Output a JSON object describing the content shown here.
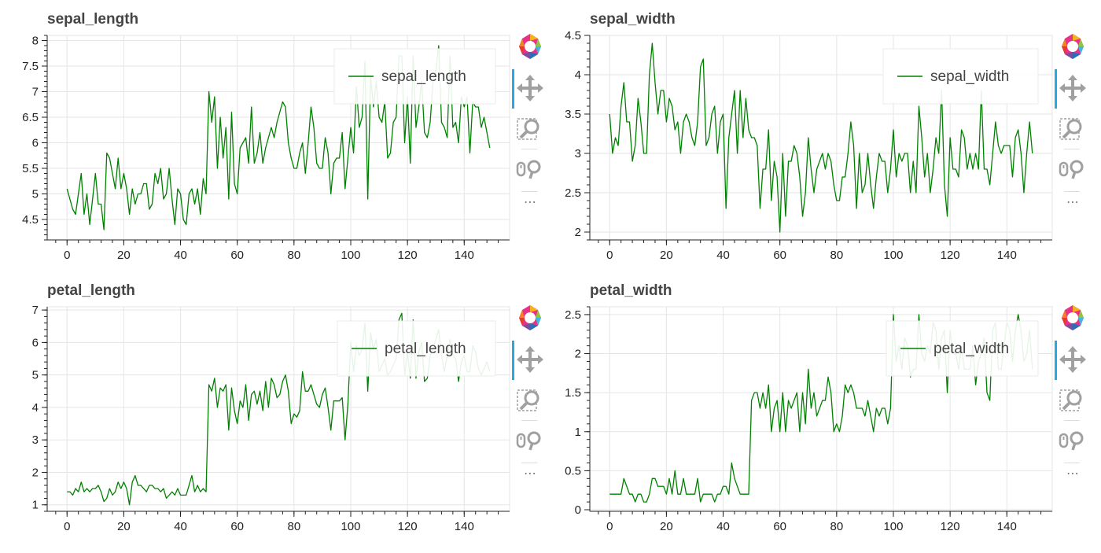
{
  "colors": {
    "line": "#008000",
    "grid": "#e5e5e5",
    "axis": "#222222",
    "accent": "#26aae1",
    "tool": "#a0a0a0"
  },
  "toolbar": {
    "icons": [
      "bokeh-logo-icon",
      "pan-icon",
      "box-zoom-icon",
      "wheel-zoom-icon",
      "more-icon"
    ],
    "more_label": "⋯"
  },
  "chart_data": [
    {
      "type": "line",
      "title": "sepal_length",
      "legend": "top-right",
      "xlim": [
        -7,
        156
      ],
      "ylim": [
        4.1,
        8.1
      ],
      "xticks": [
        "0",
        "20",
        "40",
        "60",
        "80",
        "100",
        "120",
        "140"
      ],
      "yticks": [
        "4.5",
        "5",
        "5.5",
        "6",
        "6.5",
        "7",
        "7.5",
        "8"
      ],
      "series": [
        {
          "name": "sepal_length",
          "values": [
            5.1,
            4.9,
            4.7,
            4.6,
            5.0,
            5.4,
            4.6,
            5.0,
            4.4,
            4.9,
            5.4,
            4.8,
            4.8,
            4.3,
            5.8,
            5.7,
            5.4,
            5.1,
            5.7,
            5.1,
            5.4,
            5.1,
            4.6,
            5.1,
            4.8,
            5.0,
            5.0,
            5.2,
            5.2,
            4.7,
            4.8,
            5.4,
            5.2,
            5.5,
            4.9,
            5.0,
            5.5,
            4.9,
            4.4,
            5.1,
            5.0,
            4.5,
            4.4,
            5.0,
            5.1,
            4.8,
            5.1,
            4.6,
            5.3,
            5.0,
            7.0,
            6.4,
            6.9,
            5.5,
            6.5,
            5.7,
            6.3,
            4.9,
            6.6,
            5.2,
            5.0,
            5.9,
            6.0,
            6.1,
            5.6,
            6.7,
            5.6,
            5.8,
            6.2,
            5.6,
            5.9,
            6.1,
            6.3,
            6.1,
            6.4,
            6.6,
            6.8,
            6.7,
            6.0,
            5.7,
            5.5,
            5.5,
            5.8,
            6.0,
            5.4,
            6.0,
            6.7,
            6.3,
            5.6,
            5.5,
            5.5,
            6.1,
            5.8,
            5.0,
            5.6,
            5.7,
            5.7,
            6.2,
            5.1,
            5.7,
            6.3,
            5.8,
            7.1,
            6.3,
            6.5,
            7.6,
            4.9,
            7.3,
            6.7,
            7.2,
            6.5,
            6.4,
            6.8,
            5.7,
            5.8,
            6.4,
            6.5,
            7.7,
            7.7,
            6.0,
            6.9,
            5.6,
            7.7,
            6.3,
            6.7,
            7.2,
            6.2,
            6.1,
            6.4,
            7.2,
            7.4,
            7.9,
            6.4,
            6.3,
            6.1,
            7.7,
            6.3,
            6.4,
            6.0,
            6.9,
            6.7,
            6.9,
            5.8,
            6.8,
            6.7,
            6.7,
            6.3,
            6.5,
            6.2,
            5.9
          ]
        }
      ]
    },
    {
      "type": "line",
      "title": "sepal_width",
      "legend": "top-right",
      "xlim": [
        -7,
        156
      ],
      "ylim": [
        1.9,
        4.5
      ],
      "xticks": [
        "0",
        "20",
        "40",
        "60",
        "80",
        "100",
        "120",
        "140"
      ],
      "yticks": [
        "2",
        "2.5",
        "3",
        "3.5",
        "4",
        "4.5"
      ],
      "series": [
        {
          "name": "sepal_width",
          "values": [
            3.5,
            3.0,
            3.2,
            3.1,
            3.6,
            3.9,
            3.4,
            3.4,
            2.9,
            3.1,
            3.7,
            3.4,
            3.0,
            3.0,
            4.0,
            4.4,
            3.9,
            3.5,
            3.8,
            3.8,
            3.4,
            3.7,
            3.6,
            3.3,
            3.4,
            3.0,
            3.4,
            3.5,
            3.4,
            3.2,
            3.1,
            3.4,
            4.1,
            4.2,
            3.1,
            3.2,
            3.5,
            3.6,
            3.0,
            3.4,
            3.5,
            2.3,
            3.2,
            3.5,
            3.8,
            3.0,
            3.8,
            3.2,
            3.7,
            3.3,
            3.2,
            3.2,
            3.1,
            2.3,
            2.8,
            2.8,
            3.3,
            2.4,
            2.9,
            2.7,
            2.0,
            3.0,
            2.2,
            2.9,
            2.9,
            3.1,
            3.0,
            2.7,
            2.2,
            2.5,
            3.2,
            2.8,
            2.5,
            2.8,
            2.9,
            3.0,
            2.8,
            3.0,
            2.9,
            2.6,
            2.4,
            2.4,
            2.7,
            2.7,
            3.0,
            3.4,
            3.1,
            2.3,
            3.0,
            2.5,
            2.6,
            3.0,
            2.6,
            2.3,
            2.7,
            3.0,
            2.9,
            2.9,
            2.5,
            2.8,
            3.3,
            2.7,
            3.0,
            2.9,
            3.0,
            3.0,
            2.5,
            2.9,
            2.5,
            3.6,
            3.2,
            2.7,
            3.0,
            2.5,
            2.8,
            3.2,
            3.0,
            3.8,
            2.6,
            2.2,
            3.2,
            2.8,
            2.8,
            2.7,
            3.3,
            3.2,
            2.8,
            3.0,
            2.8,
            3.0,
            2.8,
            3.8,
            2.8,
            2.8,
            2.6,
            3.0,
            3.4,
            3.1,
            3.0,
            3.1,
            3.1,
            3.1,
            2.7,
            3.2,
            3.3,
            3.0,
            2.5,
            3.0,
            3.4,
            3.0
          ]
        }
      ]
    },
    {
      "type": "line",
      "title": "petal_length",
      "legend": "top-right",
      "xlim": [
        -7,
        156
      ],
      "ylim": [
        0.8,
        7.1
      ],
      "xticks": [
        "0",
        "20",
        "40",
        "60",
        "80",
        "100",
        "120",
        "140"
      ],
      "yticks": [
        "1",
        "2",
        "3",
        "4",
        "5",
        "6",
        "7"
      ],
      "series": [
        {
          "name": "petal_length",
          "values": [
            1.4,
            1.4,
            1.3,
            1.5,
            1.4,
            1.7,
            1.4,
            1.5,
            1.4,
            1.5,
            1.5,
            1.6,
            1.4,
            1.1,
            1.2,
            1.5,
            1.3,
            1.4,
            1.7,
            1.5,
            1.7,
            1.5,
            1.0,
            1.7,
            1.9,
            1.6,
            1.6,
            1.5,
            1.4,
            1.6,
            1.6,
            1.5,
            1.5,
            1.4,
            1.5,
            1.2,
            1.3,
            1.4,
            1.3,
            1.5,
            1.3,
            1.3,
            1.3,
            1.6,
            1.9,
            1.4,
            1.6,
            1.4,
            1.5,
            1.4,
            4.7,
            4.5,
            4.9,
            4.0,
            4.6,
            4.5,
            4.7,
            3.3,
            4.6,
            3.9,
            3.5,
            4.2,
            4.0,
            4.7,
            3.6,
            4.4,
            4.5,
            4.1,
            4.5,
            3.9,
            4.8,
            4.0,
            4.9,
            4.7,
            4.3,
            4.4,
            4.8,
            5.0,
            4.5,
            3.5,
            3.8,
            3.7,
            3.9,
            5.1,
            4.5,
            4.5,
            4.7,
            4.4,
            4.1,
            4.0,
            4.4,
            4.6,
            4.0,
            3.3,
            4.2,
            4.2,
            4.2,
            4.3,
            3.0,
            4.1,
            6.0,
            5.1,
            5.9,
            5.6,
            5.8,
            6.6,
            4.5,
            6.3,
            5.8,
            6.1,
            5.1,
            5.3,
            5.5,
            5.0,
            5.1,
            5.3,
            5.5,
            6.7,
            6.9,
            5.0,
            5.7,
            4.9,
            6.7,
            4.9,
            5.7,
            6.0,
            4.8,
            4.9,
            5.6,
            5.8,
            6.1,
            6.4,
            5.6,
            5.1,
            5.6,
            6.1,
            5.6,
            5.5,
            4.8,
            5.4,
            5.6,
            5.1,
            5.1,
            5.9,
            5.7,
            5.2,
            5.0,
            5.2,
            5.4,
            5.1
          ]
        }
      ]
    },
    {
      "type": "line",
      "title": "petal_width",
      "legend": "top-right",
      "xlim": [
        -7,
        156
      ],
      "ylim": [
        -0.02,
        2.6
      ],
      "xticks": [
        "0",
        "20",
        "40",
        "60",
        "80",
        "100",
        "120",
        "140"
      ],
      "yticks": [
        "0",
        "0.5",
        "1",
        "1.5",
        "2",
        "2.5"
      ],
      "series": [
        {
          "name": "petal_width",
          "values": [
            0.2,
            0.2,
            0.2,
            0.2,
            0.2,
            0.4,
            0.3,
            0.2,
            0.2,
            0.1,
            0.2,
            0.2,
            0.1,
            0.1,
            0.2,
            0.4,
            0.4,
            0.3,
            0.3,
            0.3,
            0.2,
            0.4,
            0.2,
            0.5,
            0.2,
            0.2,
            0.4,
            0.2,
            0.2,
            0.2,
            0.2,
            0.4,
            0.1,
            0.2,
            0.2,
            0.2,
            0.2,
            0.1,
            0.2,
            0.2,
            0.3,
            0.3,
            0.2,
            0.6,
            0.4,
            0.3,
            0.2,
            0.2,
            0.2,
            0.2,
            1.4,
            1.5,
            1.5,
            1.3,
            1.5,
            1.3,
            1.6,
            1.0,
            1.3,
            1.4,
            1.0,
            1.5,
            1.0,
            1.4,
            1.3,
            1.4,
            1.5,
            1.0,
            1.5,
            1.1,
            1.8,
            1.3,
            1.5,
            1.2,
            1.3,
            1.4,
            1.4,
            1.7,
            1.5,
            1.0,
            1.1,
            1.0,
            1.2,
            1.6,
            1.5,
            1.6,
            1.5,
            1.3,
            1.3,
            1.3,
            1.2,
            1.4,
            1.2,
            1.0,
            1.3,
            1.2,
            1.3,
            1.3,
            1.1,
            1.3,
            2.5,
            1.9,
            2.1,
            1.8,
            2.2,
            2.1,
            1.7,
            1.8,
            1.8,
            2.5,
            2.0,
            1.9,
            2.1,
            2.0,
            2.4,
            2.3,
            1.8,
            2.2,
            2.3,
            1.5,
            2.3,
            2.0,
            2.0,
            1.8,
            2.1,
            1.8,
            1.8,
            1.8,
            2.1,
            1.6,
            1.9,
            2.0,
            2.2,
            1.5,
            1.4,
            2.3,
            2.4,
            1.8,
            1.8,
            2.1,
            2.4,
            2.3,
            1.9,
            2.3,
            2.5,
            2.3,
            1.9,
            2.0,
            2.3,
            1.8
          ]
        }
      ]
    }
  ]
}
